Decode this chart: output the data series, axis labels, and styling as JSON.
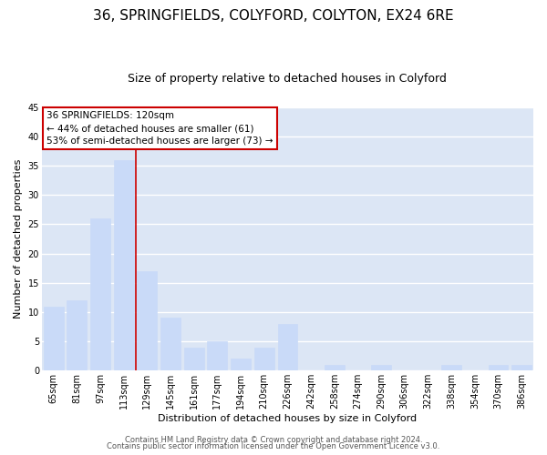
{
  "title": "36, SPRINGFIELDS, COLYFORD, COLYTON, EX24 6RE",
  "subtitle": "Size of property relative to detached houses in Colyford",
  "xlabel": "Distribution of detached houses by size in Colyford",
  "ylabel": "Number of detached properties",
  "bar_labels": [
    "65sqm",
    "81sqm",
    "97sqm",
    "113sqm",
    "129sqm",
    "145sqm",
    "161sqm",
    "177sqm",
    "194sqm",
    "210sqm",
    "226sqm",
    "242sqm",
    "258sqm",
    "274sqm",
    "290sqm",
    "306sqm",
    "322sqm",
    "338sqm",
    "354sqm",
    "370sqm",
    "386sqm"
  ],
  "bar_values": [
    11,
    12,
    26,
    36,
    17,
    9,
    4,
    5,
    2,
    4,
    8,
    0,
    1,
    0,
    1,
    0,
    0,
    1,
    0,
    1,
    1
  ],
  "highlight_index": 3,
  "bar_color": "#c9daf8",
  "highlight_line_color": "#cc0000",
  "ylim": [
    0,
    45
  ],
  "yticks": [
    0,
    5,
    10,
    15,
    20,
    25,
    30,
    35,
    40,
    45
  ],
  "annotation_title": "36 SPRINGFIELDS: 120sqm",
  "annotation_line1": "← 44% of detached houses are smaller (61)",
  "annotation_line2": "53% of semi-detached houses are larger (73) →",
  "footer_line1": "Contains HM Land Registry data © Crown copyright and database right 2024.",
  "footer_line2": "Contains public sector information licensed under the Open Government Licence v3.0.",
  "background_color": "#ffffff",
  "plot_bg_color": "#dce6f5",
  "grid_color": "#ffffff",
  "title_fontsize": 11,
  "subtitle_fontsize": 9,
  "axis_label_fontsize": 8,
  "tick_fontsize": 7,
  "footer_fontsize": 6
}
